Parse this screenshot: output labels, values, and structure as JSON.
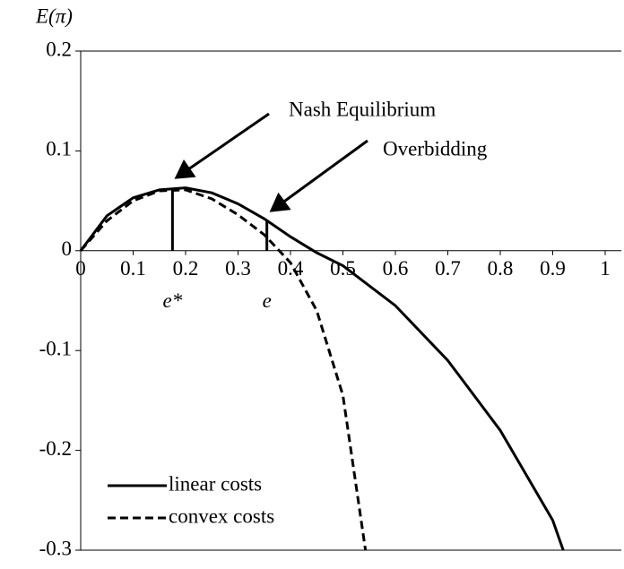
{
  "chart_data": {
    "type": "line",
    "y_label": "E(π)",
    "xlim": [
      0,
      1
    ],
    "ylim": [
      -0.3,
      0.2
    ],
    "xticks": [
      0,
      0.1,
      0.2,
      0.3,
      0.4,
      0.5,
      0.6,
      0.7,
      0.8,
      0.9,
      1
    ],
    "yticks": [
      0.2,
      0.1,
      0,
      -0.1,
      -0.2,
      -0.3
    ],
    "legend": "lower left",
    "series": [
      {
        "name": "linear costs",
        "color": "#000000",
        "dash": "solid",
        "x": [
          0,
          0.05,
          0.1,
          0.15,
          0.2,
          0.25,
          0.3,
          0.35,
          0.4,
          0.45,
          0.5,
          0.6,
          0.7,
          0.8,
          0.9,
          0.92
        ],
        "values": [
          0,
          0.035,
          0.053,
          0.061,
          0.063,
          0.058,
          0.047,
          0.032,
          0.014,
          -0.002,
          -0.015,
          -0.055,
          -0.11,
          -0.18,
          -0.27,
          -0.3
        ]
      },
      {
        "name": "convex costs",
        "color": "#000000",
        "dash": "dashed",
        "x": [
          0,
          0.05,
          0.1,
          0.15,
          0.2,
          0.25,
          0.3,
          0.35,
          0.4,
          0.45,
          0.5,
          0.543
        ],
        "values": [
          0,
          0.03,
          0.05,
          0.06,
          0.061,
          0.052,
          0.036,
          0.016,
          -0.012,
          -0.06,
          -0.145,
          -0.3
        ]
      }
    ],
    "markers": [
      {
        "label": "e*",
        "x": 0.175,
        "y": 0.062
      },
      {
        "label": "e",
        "x": 0.355,
        "y": 0.031
      }
    ],
    "annotations": [
      {
        "text": "Nash Equilibrium"
      },
      {
        "text": "Overbidding"
      }
    ]
  }
}
